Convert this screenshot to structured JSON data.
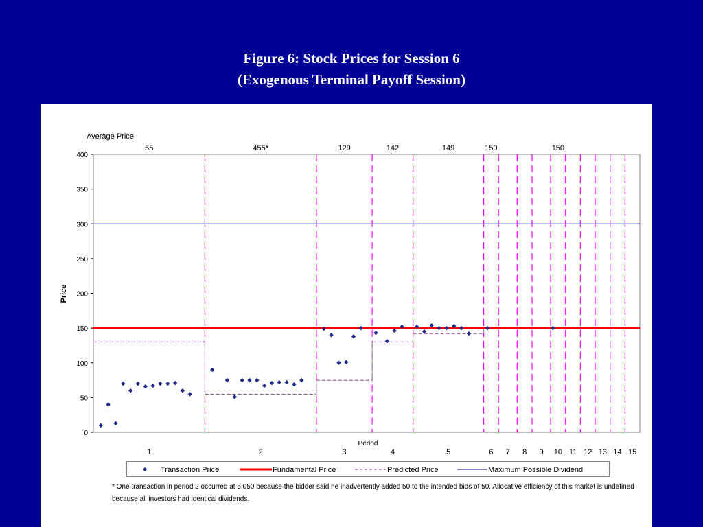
{
  "title": {
    "line1": "Figure 6: Stock Prices for Session 6",
    "line2": "(Exogenous Terminal Payoff Session)"
  },
  "chart_data": {
    "type": "scatter",
    "ylabel": "Price",
    "xlabel": "Period",
    "ylim": [
      0,
      400
    ],
    "yticks": [
      0,
      50,
      100,
      150,
      200,
      250,
      300,
      350,
      400
    ],
    "grid": false,
    "legend_position": "bottom",
    "avg_price_label": "Average Price",
    "periods": [
      {
        "label": "1",
        "start": 0,
        "end": 15,
        "avg": "55",
        "predicted": 130
      },
      {
        "label": "2",
        "start": 15,
        "end": 30,
        "avg": "455*",
        "predicted": 55
      },
      {
        "label": "3",
        "start": 30,
        "end": 37.5,
        "avg": "129",
        "predicted": 75
      },
      {
        "label": "4",
        "start": 37.5,
        "end": 43,
        "avg": "142",
        "predicted": 130
      },
      {
        "label": "5",
        "start": 43,
        "end": 52.5,
        "avg": "149",
        "predicted": 142
      },
      {
        "label": "6",
        "start": 52.5,
        "end": 54.5,
        "avg": "150",
        "predicted": 150
      },
      {
        "label": "7",
        "start": 54.5,
        "end": 57,
        "avg": "",
        "predicted": 150
      },
      {
        "label": "8",
        "start": 57,
        "end": 59,
        "avg": "",
        "predicted": 150
      },
      {
        "label": "9",
        "start": 59,
        "end": 61.5,
        "avg": "",
        "predicted": 150
      },
      {
        "label": "10",
        "start": 61.5,
        "end": 63.5,
        "avg": "150",
        "predicted": 150
      },
      {
        "label": "11",
        "start": 63.5,
        "end": 65.5,
        "avg": "",
        "predicted": 150
      },
      {
        "label": "12",
        "start": 65.5,
        "end": 67.5,
        "avg": "",
        "predicted": 150
      },
      {
        "label": "13",
        "start": 67.5,
        "end": 69.5,
        "avg": "",
        "predicted": 150
      },
      {
        "label": "14",
        "start": 69.5,
        "end": 71.5,
        "avg": "",
        "predicted": 150
      },
      {
        "label": "15",
        "start": 71.5,
        "end": 73.5,
        "avg": "",
        "predicted": 150
      }
    ],
    "series": [
      {
        "name": "Transaction Price",
        "color": "#1f2d8a",
        "points": [
          [
            1,
            10
          ],
          [
            2,
            40
          ],
          [
            3,
            13
          ],
          [
            4,
            70
          ],
          [
            5,
            60
          ],
          [
            6,
            70
          ],
          [
            7,
            66
          ],
          [
            8,
            67
          ],
          [
            9,
            70
          ],
          [
            10,
            70
          ],
          [
            11,
            71
          ],
          [
            12,
            60
          ],
          [
            13,
            55
          ],
          [
            16,
            90
          ],
          [
            18,
            75
          ],
          [
            19,
            51
          ],
          [
            20,
            75
          ],
          [
            21,
            75
          ],
          [
            22,
            75
          ],
          [
            23,
            67
          ],
          [
            24,
            71
          ],
          [
            25,
            72
          ],
          [
            26,
            72
          ],
          [
            27,
            69
          ],
          [
            28,
            75
          ],
          [
            31,
            149
          ],
          [
            32,
            140
          ],
          [
            33,
            100
          ],
          [
            34,
            101
          ],
          [
            35,
            138
          ],
          [
            36,
            150
          ],
          [
            38,
            143
          ],
          [
            39.5,
            131
          ],
          [
            40.5,
            146
          ],
          [
            41.5,
            152
          ],
          [
            43.5,
            152
          ],
          [
            44.5,
            145
          ],
          [
            45.5,
            154
          ],
          [
            46.5,
            150
          ],
          [
            47.5,
            150
          ],
          [
            48.5,
            153
          ],
          [
            49.5,
            150
          ],
          [
            50.5,
            142
          ],
          [
            53,
            150
          ],
          [
            61.8,
            150
          ]
        ]
      },
      {
        "name": "Fundamental Price",
        "color": "#ff0000",
        "value": 150
      },
      {
        "name": "Predicted Price",
        "color": "#993399"
      },
      {
        "name": "Maximum Possible Dividend",
        "color": "#000080",
        "value": 300
      }
    ]
  },
  "footnote": "* One transaction in period 2 occurred at 5,050 because the bidder said he inadvertently added 50 to the intended bids of 50. Allocative efficiency of this market is undefined because all investors had identical dividends."
}
